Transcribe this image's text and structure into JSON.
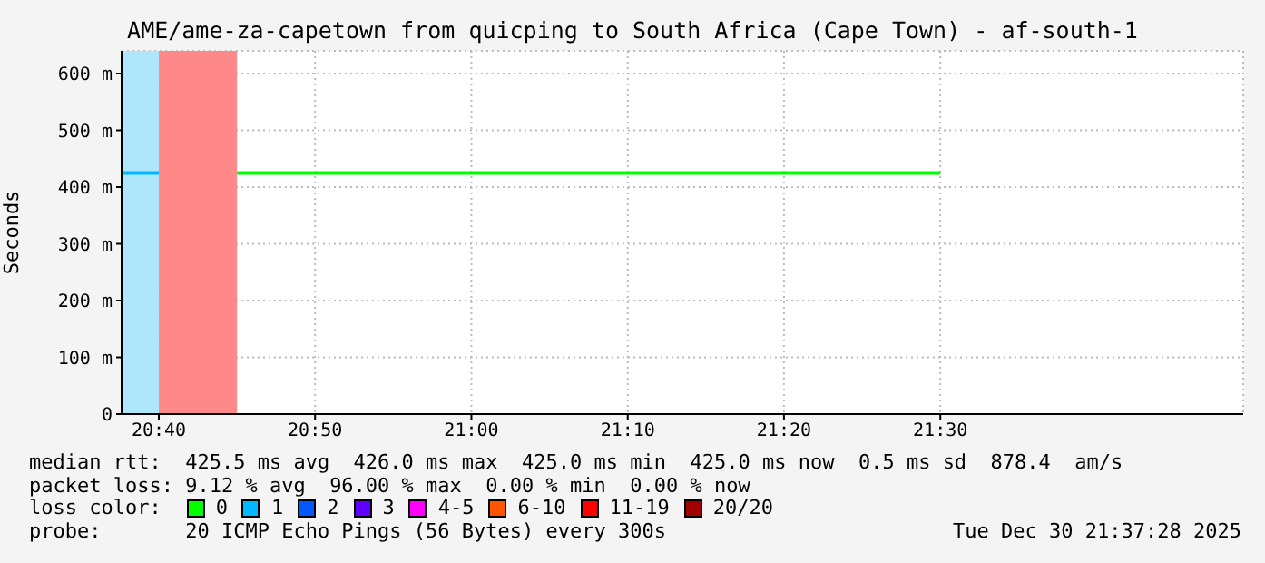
{
  "chart_data": {
    "type": "line",
    "title": "AME/ame-za-capetown from quicping to South Africa (Cape Town) - af-south-1",
    "ylabel": "Seconds",
    "legend_title": "loss color:",
    "legend": "bottom",
    "grid": true,
    "marker": "none",
    "line_style": "solid",
    "xlim": [
      20.627,
      21.823
    ],
    "xticks": [
      {
        "value": 20.6667,
        "label": "20:40"
      },
      {
        "value": 20.8333,
        "label": "20:50"
      },
      {
        "value": 21,
        "label": "21:00"
      },
      {
        "value": 21.1667,
        "label": "21:10"
      },
      {
        "value": 21.3333,
        "label": "21:20"
      },
      {
        "value": 21.5,
        "label": "21:30"
      }
    ],
    "ylim": [
      0,
      640
    ],
    "yticks": [
      {
        "value": 0,
        "label": "0"
      },
      {
        "value": 100,
        "label": "100 m"
      },
      {
        "value": 200,
        "label": "200 m"
      },
      {
        "value": 300,
        "label": "300 m"
      },
      {
        "value": 400,
        "label": "400 m"
      },
      {
        "value": 500,
        "label": "500 m"
      },
      {
        "value": 600,
        "label": "600 m"
      }
    ],
    "series": [
      {
        "name": "0",
        "color": "#00ff00",
        "x": [
          20.75,
          21.5
        ],
        "values": [
          425,
          425
        ]
      },
      {
        "name": "1",
        "color": "#00b8ff",
        "x": [
          20.627,
          20.6667
        ],
        "values": [
          425,
          425
        ]
      },
      {
        "name": "2",
        "color": "#0059ff"
      },
      {
        "name": "3",
        "color": "#5e00ff"
      },
      {
        "name": "4-5",
        "color": "#ff00ff"
      },
      {
        "name": "6-10",
        "color": "#ff5500"
      },
      {
        "name": "11-19",
        "color": "#ff0000"
      },
      {
        "name": "20/20",
        "color": "#a10000"
      }
    ],
    "bands": [
      {
        "axis": "x",
        "from": 20.627,
        "to": 20.6667,
        "color": "#aee6fb"
      },
      {
        "axis": "x",
        "from": 20.6667,
        "to": 20.75,
        "color": "#ff8888"
      }
    ],
    "annotations": [
      "median rtt:  425.5 ms avg  426.0 ms max  425.0 ms min  425.0 ms now  0.5 ms sd  878.4  am/s",
      "packet loss: 9.12 % avg  96.00 % max  0.00 % min  0.00 % now",
      "probe:       20 ICMP Echo Pings (56 Bytes) every 300s",
      "Tue Dec 30 21:37:28 2025"
    ]
  }
}
